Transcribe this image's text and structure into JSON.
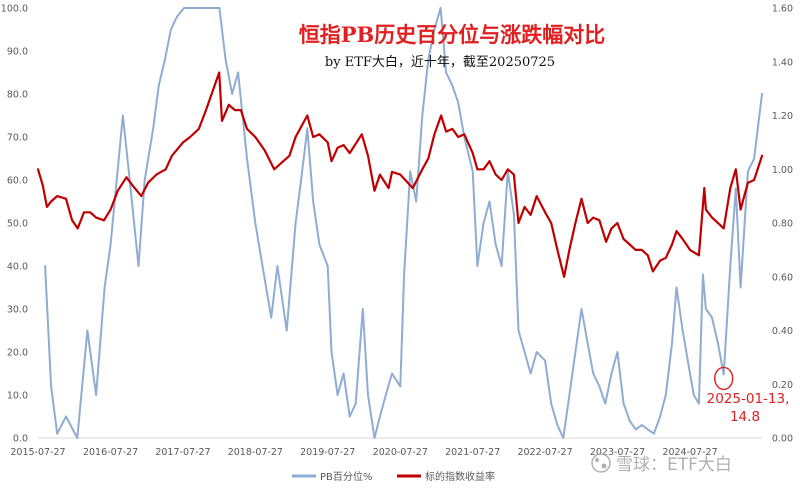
{
  "chart_data": {
    "type": "line",
    "title": "恒指PB历史百分位与涨跌幅对比",
    "subtitle": "by ETF大白，近十年，截至20250725",
    "x_tick_labels": [
      "2015-07-27",
      "2016-07-27",
      "2017-07-27",
      "2018-07-27",
      "2019-07-27",
      "2020-07-27",
      "2021-07-27",
      "2022-07-27",
      "2023-07-27",
      "2024-07-27"
    ],
    "y_left": {
      "lim": [
        0,
        100
      ],
      "tick_labels": [
        "0.0",
        "10.0",
        "20.0",
        "30.0",
        "40.0",
        "50.0",
        "60.0",
        "70.0",
        "80.0",
        "90.0",
        "100.0"
      ]
    },
    "y_right": {
      "lim": [
        0,
        1.6
      ],
      "tick_labels": [
        "0.00",
        "0.20",
        "0.40",
        "0.60",
        "0.80",
        "1.00",
        "1.20",
        "1.40",
        "1.60"
      ]
    },
    "x_start": "2015-07-27",
    "x_end": "2025-07-25",
    "series": [
      {
        "name": "PB百分位%",
        "axis": "left",
        "color": "#8fadd3",
        "points": [
          [
            "2015-07-27",
            null
          ],
          [
            "2015-09-01",
            40
          ],
          [
            "2015-10-01",
            12
          ],
          [
            "2015-11-01",
            1
          ],
          [
            "2015-12-15",
            5
          ],
          [
            "2016-02-10",
            0
          ],
          [
            "2016-04-01",
            25
          ],
          [
            "2016-05-15",
            10
          ],
          [
            "2016-06-27",
            35
          ],
          [
            "2016-07-27",
            45
          ],
          [
            "2016-08-27",
            60
          ],
          [
            "2016-09-27",
            75
          ],
          [
            "2016-10-27",
            62
          ],
          [
            "2016-12-15",
            40
          ],
          [
            "2017-01-15",
            60
          ],
          [
            "2017-02-27",
            72
          ],
          [
            "2017-03-27",
            82
          ],
          [
            "2017-04-27",
            88
          ],
          [
            "2017-05-27",
            95
          ],
          [
            "2017-06-27",
            98
          ],
          [
            "2017-08-01",
            100
          ],
          [
            "2017-10-01",
            100
          ],
          [
            "2017-12-01",
            100
          ],
          [
            "2018-01-27",
            100
          ],
          [
            "2018-02-27",
            88
          ],
          [
            "2018-04-01",
            80
          ],
          [
            "2018-05-01",
            85
          ],
          [
            "2018-06-15",
            65
          ],
          [
            "2018-07-27",
            50
          ],
          [
            "2018-09-01",
            40
          ],
          [
            "2018-10-15",
            28
          ],
          [
            "2018-11-15",
            40
          ],
          [
            "2019-01-01",
            25
          ],
          [
            "2019-02-15",
            50
          ],
          [
            "2019-03-15",
            60
          ],
          [
            "2019-04-15",
            72
          ],
          [
            "2019-05-15",
            55
          ],
          [
            "2019-06-15",
            45
          ],
          [
            "2019-07-27",
            40
          ],
          [
            "2019-08-15",
            20
          ],
          [
            "2019-09-15",
            10
          ],
          [
            "2019-10-15",
            15
          ],
          [
            "2019-11-15",
            5
          ],
          [
            "2019-12-15",
            8
          ],
          [
            "2020-01-20",
            30
          ],
          [
            "2020-02-15",
            10
          ],
          [
            "2020-03-19",
            0
          ],
          [
            "2020-04-15",
            5
          ],
          [
            "2020-05-15",
            10
          ],
          [
            "2020-06-15",
            15
          ],
          [
            "2020-07-27",
            12
          ],
          [
            "2020-08-15",
            38
          ],
          [
            "2020-09-15",
            62
          ],
          [
            "2020-10-15",
            55
          ],
          [
            "2020-11-15",
            75
          ],
          [
            "2020-12-15",
            88
          ],
          [
            "2021-01-15",
            95
          ],
          [
            "2021-02-15",
            100
          ],
          [
            "2021-03-15",
            85
          ],
          [
            "2021-04-15",
            82
          ],
          [
            "2021-05-15",
            78
          ],
          [
            "2021-06-15",
            70
          ],
          [
            "2021-07-27",
            62
          ],
          [
            "2021-08-20",
            40
          ],
          [
            "2021-09-20",
            50
          ],
          [
            "2021-10-20",
            55
          ],
          [
            "2021-11-20",
            45
          ],
          [
            "2021-12-20",
            40
          ],
          [
            "2022-01-20",
            62
          ],
          [
            "2022-02-20",
            52
          ],
          [
            "2022-03-15",
            25
          ],
          [
            "2022-04-15",
            20
          ],
          [
            "2022-05-15",
            15
          ],
          [
            "2022-06-15",
            20
          ],
          [
            "2022-07-27",
            18
          ],
          [
            "2022-08-27",
            8
          ],
          [
            "2022-09-27",
            3
          ],
          [
            "2022-10-27",
            0
          ],
          [
            "2022-11-27",
            10
          ],
          [
            "2022-12-27",
            20
          ],
          [
            "2023-01-27",
            30
          ],
          [
            "2023-02-27",
            22
          ],
          [
            "2023-03-27",
            15
          ],
          [
            "2023-04-27",
            12
          ],
          [
            "2023-05-27",
            8
          ],
          [
            "2023-06-27",
            15
          ],
          [
            "2023-07-27",
            20
          ],
          [
            "2023-08-27",
            8
          ],
          [
            "2023-09-27",
            4
          ],
          [
            "2023-10-27",
            2
          ],
          [
            "2023-11-27",
            3
          ],
          [
            "2023-12-27",
            2
          ],
          [
            "2024-01-27",
            1
          ],
          [
            "2024-02-27",
            5
          ],
          [
            "2024-03-27",
            10
          ],
          [
            "2024-04-27",
            22
          ],
          [
            "2024-05-20",
            35
          ],
          [
            "2024-06-20",
            25
          ],
          [
            "2024-07-27",
            15
          ],
          [
            "2024-08-15",
            10
          ],
          [
            "2024-09-10",
            8
          ],
          [
            "2024-09-30",
            38
          ],
          [
            "2024-10-15",
            30
          ],
          [
            "2024-11-15",
            28
          ],
          [
            "2024-12-15",
            22
          ],
          [
            "2025-01-13",
            14.8
          ],
          [
            "2025-02-15",
            40
          ],
          [
            "2025-03-15",
            58
          ],
          [
            "2025-04-08",
            35
          ],
          [
            "2025-05-15",
            62
          ],
          [
            "2025-06-15",
            65
          ],
          [
            "2025-07-25",
            80
          ]
        ]
      },
      {
        "name": "标的指数收益率",
        "axis": "right",
        "color": "#c00000",
        "points": [
          [
            "2015-07-27",
            1.0
          ],
          [
            "2015-08-20",
            0.94
          ],
          [
            "2015-09-10",
            0.86
          ],
          [
            "2015-10-01",
            0.88
          ],
          [
            "2015-11-01",
            0.9
          ],
          [
            "2015-12-15",
            0.89
          ],
          [
            "2016-01-15",
            0.81
          ],
          [
            "2016-02-12",
            0.78
          ],
          [
            "2016-03-15",
            0.84
          ],
          [
            "2016-04-15",
            0.84
          ],
          [
            "2016-05-15",
            0.82
          ],
          [
            "2016-06-24",
            0.81
          ],
          [
            "2016-07-27",
            0.85
          ],
          [
            "2016-09-01",
            0.92
          ],
          [
            "2016-10-15",
            0.97
          ],
          [
            "2016-11-15",
            0.94
          ],
          [
            "2016-12-29",
            0.9
          ],
          [
            "2017-02-01",
            0.95
          ],
          [
            "2017-03-15",
            0.98
          ],
          [
            "2017-05-01",
            1.0
          ],
          [
            "2017-06-01",
            1.05
          ],
          [
            "2017-07-27",
            1.1
          ],
          [
            "2017-09-01",
            1.12
          ],
          [
            "2017-10-15",
            1.15
          ],
          [
            "2017-11-20",
            1.22
          ],
          [
            "2018-01-26",
            1.36
          ],
          [
            "2018-02-09",
            1.18
          ],
          [
            "2018-03-15",
            1.24
          ],
          [
            "2018-04-15",
            1.22
          ],
          [
            "2018-05-15",
            1.22
          ],
          [
            "2018-06-15",
            1.15
          ],
          [
            "2018-07-27",
            1.12
          ],
          [
            "2018-09-12",
            1.07
          ],
          [
            "2018-10-30",
            1.0
          ],
          [
            "2018-12-15",
            1.03
          ],
          [
            "2019-01-15",
            1.05
          ],
          [
            "2019-02-15",
            1.12
          ],
          [
            "2019-04-15",
            1.2
          ],
          [
            "2019-05-15",
            1.12
          ],
          [
            "2019-06-15",
            1.13
          ],
          [
            "2019-07-27",
            1.1
          ],
          [
            "2019-08-15",
            1.03
          ],
          [
            "2019-09-15",
            1.08
          ],
          [
            "2019-10-15",
            1.09
          ],
          [
            "2019-11-15",
            1.06
          ],
          [
            "2020-01-15",
            1.13
          ],
          [
            "2020-02-15",
            1.05
          ],
          [
            "2020-03-19",
            0.92
          ],
          [
            "2020-04-15",
            0.98
          ],
          [
            "2020-05-29",
            0.93
          ],
          [
            "2020-06-15",
            0.99
          ],
          [
            "2020-07-27",
            0.98
          ],
          [
            "2020-09-28",
            0.93
          ],
          [
            "2020-11-15",
            1.0
          ],
          [
            "2020-12-15",
            1.04
          ],
          [
            "2021-01-15",
            1.13
          ],
          [
            "2021-02-18",
            1.2
          ],
          [
            "2021-03-15",
            1.14
          ],
          [
            "2021-04-15",
            1.15
          ],
          [
            "2021-05-15",
            1.12
          ],
          [
            "2021-06-15",
            1.13
          ],
          [
            "2021-07-27",
            1.06
          ],
          [
            "2021-08-20",
            1.0
          ],
          [
            "2021-09-20",
            1.0
          ],
          [
            "2021-10-20",
            1.03
          ],
          [
            "2021-11-20",
            0.98
          ],
          [
            "2021-12-20",
            0.96
          ],
          [
            "2022-01-20",
            1.0
          ],
          [
            "2022-02-20",
            0.98
          ],
          [
            "2022-03-15",
            0.8
          ],
          [
            "2022-04-15",
            0.86
          ],
          [
            "2022-05-15",
            0.83
          ],
          [
            "2022-06-15",
            0.9
          ],
          [
            "2022-07-27",
            0.84
          ],
          [
            "2022-08-27",
            0.8
          ],
          [
            "2022-09-27",
            0.7
          ],
          [
            "2022-10-31",
            0.6
          ],
          [
            "2022-11-27",
            0.7
          ],
          [
            "2022-12-27",
            0.8
          ],
          [
            "2023-01-27",
            0.89
          ],
          [
            "2023-02-27",
            0.8
          ],
          [
            "2023-03-27",
            0.82
          ],
          [
            "2023-04-27",
            0.81
          ],
          [
            "2023-05-31",
            0.73
          ],
          [
            "2023-06-27",
            0.78
          ],
          [
            "2023-07-27",
            0.8
          ],
          [
            "2023-08-27",
            0.74
          ],
          [
            "2023-09-27",
            0.72
          ],
          [
            "2023-10-27",
            0.7
          ],
          [
            "2023-11-27",
            0.7
          ],
          [
            "2023-12-27",
            0.68
          ],
          [
            "2024-01-22",
            0.62
          ],
          [
            "2024-02-27",
            0.66
          ],
          [
            "2024-03-27",
            0.67
          ],
          [
            "2024-04-27",
            0.72
          ],
          [
            "2024-05-20",
            0.77
          ],
          [
            "2024-06-20",
            0.74
          ],
          [
            "2024-07-27",
            0.7
          ],
          [
            "2024-09-10",
            0.68
          ],
          [
            "2024-10-07",
            0.93
          ],
          [
            "2024-10-15",
            0.85
          ],
          [
            "2024-11-15",
            0.82
          ],
          [
            "2024-12-15",
            0.8
          ],
          [
            "2025-01-13",
            0.78
          ],
          [
            "2025-02-15",
            0.93
          ],
          [
            "2025-03-15",
            1.0
          ],
          [
            "2025-04-08",
            0.85
          ],
          [
            "2025-05-15",
            0.95
          ],
          [
            "2025-06-15",
            0.96
          ],
          [
            "2025-07-25",
            1.05
          ]
        ]
      }
    ],
    "annotation": {
      "text_line1": "2025-01-13,",
      "text_line2": "14.8",
      "x": "2025-01-13",
      "y": 14.8,
      "color": "#e02020"
    },
    "legend": {
      "position": "bottom",
      "entries": [
        "PB百分位%",
        "标的指数收益率"
      ]
    },
    "grid": false
  },
  "watermark": "雪球：ETF大白"
}
